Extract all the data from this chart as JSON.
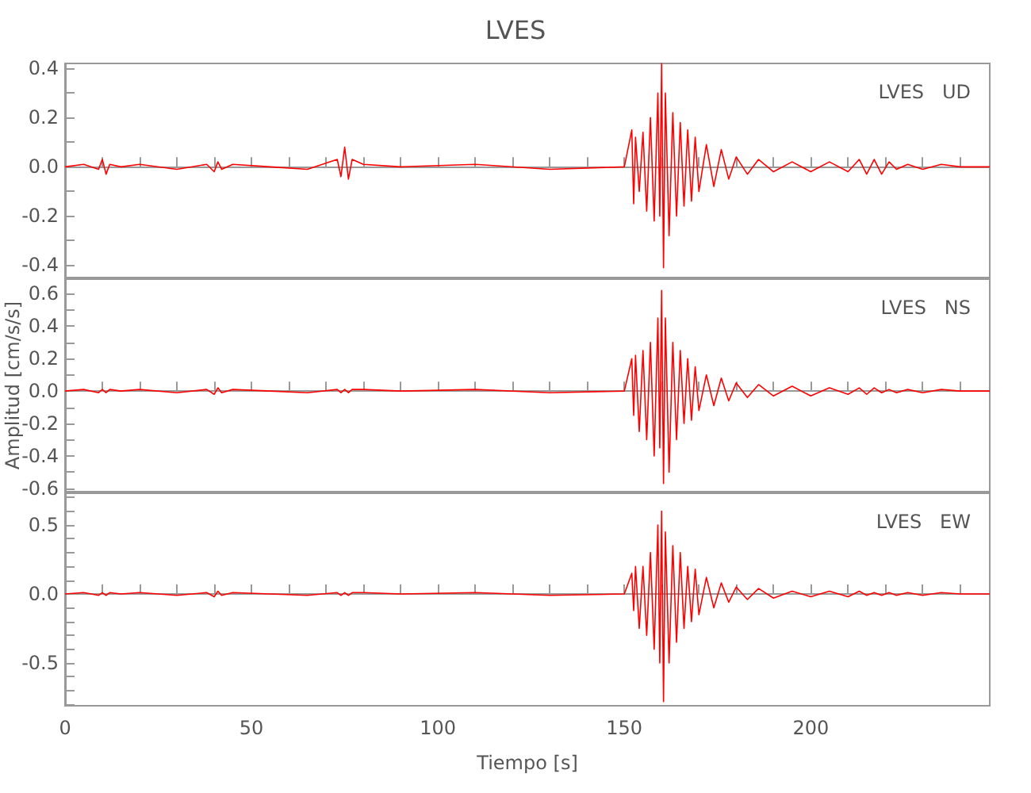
{
  "chart_data": [
    {
      "type": "line",
      "title": "LVES",
      "annotations": [
        "LVES   UD"
      ],
      "tick_labels": "y",
      "xlim": [
        0,
        248
      ],
      "xticks": [
        {
          "value": 0,
          "label": null
        },
        {
          "value": 10,
          "label": null
        },
        {
          "value": 20,
          "label": null
        },
        {
          "value": 30,
          "label": null
        },
        {
          "value": 40,
          "label": null
        },
        {
          "value": 50,
          "label": null
        },
        {
          "value": 60,
          "label": null
        },
        {
          "value": 70,
          "label": null
        },
        {
          "value": 80,
          "label": null
        },
        {
          "value": 90,
          "label": null
        },
        {
          "value": 100,
          "label": null
        },
        {
          "value": 110,
          "label": null
        },
        {
          "value": 120,
          "label": null
        },
        {
          "value": 130,
          "label": null
        },
        {
          "value": 140,
          "label": null
        },
        {
          "value": 150,
          "label": null
        },
        {
          "value": 160,
          "label": null
        },
        {
          "value": 170,
          "label": null
        },
        {
          "value": 180,
          "label": null
        },
        {
          "value": 190,
          "label": null
        },
        {
          "value": 200,
          "label": null
        },
        {
          "value": 210,
          "label": null
        },
        {
          "value": 220,
          "label": null
        },
        {
          "value": 230,
          "label": null
        },
        {
          "value": 240,
          "label": null
        }
      ],
      "ylim": [
        -0.45,
        0.42
      ],
      "yticks": [
        {
          "value": -0.4,
          "label": "-0.4"
        },
        {
          "value": -0.3,
          "label": null
        },
        {
          "value": -0.2,
          "label": "-0.2"
        },
        {
          "value": -0.1,
          "label": null
        },
        {
          "value": 0,
          "label": "0.0"
        },
        {
          "value": 0.1,
          "label": null
        },
        {
          "value": 0.2,
          "label": "0.2"
        },
        {
          "value": 0.3,
          "label": null
        },
        {
          "value": 0.4,
          "label": "0.4"
        }
      ],
      "x": [
        0,
        5,
        9,
        10,
        11,
        12,
        15,
        20,
        30,
        38,
        40,
        41,
        42,
        45,
        55,
        65,
        73,
        74,
        75,
        76,
        77,
        80,
        90,
        110,
        130,
        150,
        152,
        152.5,
        153,
        154,
        155,
        156,
        157,
        158,
        159,
        159.5,
        160,
        160.5,
        161,
        162,
        163,
        164,
        165,
        166,
        167,
        168,
        169,
        170,
        172,
        174,
        176,
        178,
        180,
        183,
        186,
        190,
        195,
        200,
        205,
        210,
        213,
        215,
        217,
        219,
        221,
        223,
        226,
        230,
        235,
        240,
        248
      ],
      "series": [
        {
          "color": "#ff0000",
          "values": [
            0,
            0.01,
            -0.01,
            0.03,
            -0.03,
            0.01,
            0,
            0.01,
            -0.01,
            0.01,
            -0.02,
            0.02,
            -0.01,
            0.01,
            0,
            -0.01,
            0.03,
            -0.04,
            0.08,
            -0.05,
            0.03,
            0.01,
            0,
            0.01,
            -0.01,
            0,
            0.15,
            -0.15,
            0.12,
            -0.1,
            0.14,
            -0.18,
            0.2,
            -0.22,
            0.3,
            -0.2,
            0.42,
            -0.41,
            0.3,
            -0.28,
            0.22,
            -0.2,
            0.18,
            -0.16,
            0.15,
            -0.14,
            0.12,
            -0.1,
            0.09,
            -0.08,
            0.07,
            -0.05,
            0.04,
            -0.03,
            0.03,
            -0.02,
            0.02,
            -0.02,
            0.02,
            -0.02,
            0.03,
            -0.03,
            0.03,
            -0.03,
            0.02,
            -0.01,
            0.01,
            -0.01,
            0.01,
            0,
            0
          ]
        }
      ]
    },
    {
      "type": "line",
      "ylabel": "Amplitud [cm/s/s]",
      "annotations": [
        "LVES   NS"
      ],
      "tick_labels": "y",
      "xlim": [
        0,
        248
      ],
      "xticks": [
        {
          "value": 0,
          "label": null
        },
        {
          "value": 10,
          "label": null
        },
        {
          "value": 20,
          "label": null
        },
        {
          "value": 30,
          "label": null
        },
        {
          "value": 40,
          "label": null
        },
        {
          "value": 50,
          "label": null
        },
        {
          "value": 60,
          "label": null
        },
        {
          "value": 70,
          "label": null
        },
        {
          "value": 80,
          "label": null
        },
        {
          "value": 90,
          "label": null
        },
        {
          "value": 100,
          "label": null
        },
        {
          "value": 110,
          "label": null
        },
        {
          "value": 120,
          "label": null
        },
        {
          "value": 130,
          "label": null
        },
        {
          "value": 140,
          "label": null
        },
        {
          "value": 150,
          "label": null
        },
        {
          "value": 160,
          "label": null
        },
        {
          "value": 170,
          "label": null
        },
        {
          "value": 180,
          "label": null
        },
        {
          "value": 190,
          "label": null
        },
        {
          "value": 200,
          "label": null
        },
        {
          "value": 210,
          "label": null
        },
        {
          "value": 220,
          "label": null
        },
        {
          "value": 230,
          "label": null
        },
        {
          "value": 240,
          "label": null
        }
      ],
      "ylim": [
        -0.62,
        0.69
      ],
      "yticks": [
        {
          "value": -0.6,
          "label": "-0.6"
        },
        {
          "value": -0.5,
          "label": null
        },
        {
          "value": -0.4,
          "label": "-0.4"
        },
        {
          "value": -0.3,
          "label": null
        },
        {
          "value": -0.2,
          "label": "-0.2"
        },
        {
          "value": -0.1,
          "label": null
        },
        {
          "value": 0,
          "label": "0.0"
        },
        {
          "value": 0.1,
          "label": null
        },
        {
          "value": 0.2,
          "label": "0.2"
        },
        {
          "value": 0.3,
          "label": null
        },
        {
          "value": 0.4,
          "label": "0.4"
        },
        {
          "value": 0.5,
          "label": null
        },
        {
          "value": 0.6,
          "label": "0.6"
        }
      ],
      "x": [
        0,
        5,
        9,
        10,
        11,
        12,
        15,
        20,
        30,
        38,
        40,
        41,
        42,
        45,
        55,
        65,
        73,
        74,
        75,
        76,
        77,
        80,
        90,
        110,
        130,
        150,
        152,
        152.5,
        153,
        154,
        155,
        156,
        157,
        158,
        159,
        159.5,
        160,
        160.5,
        161,
        162,
        163,
        164,
        165,
        166,
        167,
        168,
        169,
        170,
        172,
        174,
        176,
        178,
        180,
        183,
        186,
        190,
        195,
        200,
        205,
        210,
        213,
        215,
        217,
        219,
        221,
        223,
        226,
        230,
        235,
        240,
        248
      ],
      "series": [
        {
          "color": "#ff0000",
          "values": [
            0,
            0.01,
            -0.01,
            0.01,
            -0.01,
            0.01,
            0,
            0.01,
            -0.01,
            0.01,
            -0.02,
            0.02,
            -0.01,
            0.01,
            0,
            -0.01,
            0.01,
            -0.01,
            0.01,
            -0.01,
            0.01,
            0.01,
            0,
            0.01,
            -0.01,
            0,
            0.2,
            -0.15,
            0.22,
            -0.25,
            0.25,
            -0.3,
            0.3,
            -0.4,
            0.45,
            -0.35,
            0.62,
            -0.57,
            0.45,
            -0.5,
            0.3,
            -0.3,
            0.25,
            -0.2,
            0.2,
            -0.18,
            0.15,
            -0.12,
            0.1,
            -0.09,
            0.08,
            -0.06,
            0.05,
            -0.04,
            0.04,
            -0.03,
            0.03,
            -0.03,
            0.02,
            -0.02,
            0.02,
            -0.02,
            0.02,
            -0.01,
            0.01,
            -0.01,
            0.01,
            -0.01,
            0.01,
            0,
            0
          ]
        }
      ]
    },
    {
      "type": "line",
      "xlabel": "Tiempo [s]",
      "annotations": [
        "LVES   EW"
      ],
      "xlim": [
        0,
        248
      ],
      "xticks": [
        {
          "value": 0,
          "label": "0"
        },
        {
          "value": 10,
          "label": null
        },
        {
          "value": 20,
          "label": null
        },
        {
          "value": 30,
          "label": null
        },
        {
          "value": 40,
          "label": null
        },
        {
          "value": 50,
          "label": "50"
        },
        {
          "value": 60,
          "label": null
        },
        {
          "value": 70,
          "label": null
        },
        {
          "value": 80,
          "label": null
        },
        {
          "value": 90,
          "label": null
        },
        {
          "value": 100,
          "label": "100"
        },
        {
          "value": 110,
          "label": null
        },
        {
          "value": 120,
          "label": null
        },
        {
          "value": 130,
          "label": null
        },
        {
          "value": 140,
          "label": null
        },
        {
          "value": 150,
          "label": "150"
        },
        {
          "value": 160,
          "label": null
        },
        {
          "value": 170,
          "label": null
        },
        {
          "value": 180,
          "label": null
        },
        {
          "value": 190,
          "label": null
        },
        {
          "value": 200,
          "label": "200"
        },
        {
          "value": 210,
          "label": null
        },
        {
          "value": 220,
          "label": null
        },
        {
          "value": 230,
          "label": null
        },
        {
          "value": 240,
          "label": null
        }
      ],
      "ylim": [
        -0.81,
        0.73
      ],
      "yticks": [
        {
          "value": -0.8,
          "label": null
        },
        {
          "value": -0.7,
          "label": null
        },
        {
          "value": -0.6,
          "label": null
        },
        {
          "value": -0.5,
          "label": "-0.5"
        },
        {
          "value": -0.4,
          "label": null
        },
        {
          "value": -0.3,
          "label": null
        },
        {
          "value": -0.2,
          "label": null
        },
        {
          "value": -0.1,
          "label": null
        },
        {
          "value": 0,
          "label": "0.0"
        },
        {
          "value": 0.1,
          "label": null
        },
        {
          "value": 0.2,
          "label": null
        },
        {
          "value": 0.3,
          "label": null
        },
        {
          "value": 0.4,
          "label": null
        },
        {
          "value": 0.5,
          "label": "0.5"
        },
        {
          "value": 0.6,
          "label": null
        },
        {
          "value": 0.7,
          "label": null
        }
      ],
      "x": [
        0,
        5,
        9,
        10,
        11,
        12,
        15,
        20,
        30,
        38,
        40,
        41,
        42,
        45,
        55,
        65,
        73,
        74,
        75,
        76,
        77,
        80,
        90,
        110,
        130,
        150,
        152,
        152.5,
        153,
        154,
        155,
        156,
        157,
        158,
        159,
        159.5,
        160,
        160.5,
        161,
        162,
        163,
        164,
        165,
        166,
        167,
        168,
        169,
        170,
        172,
        174,
        176,
        178,
        180,
        183,
        186,
        190,
        195,
        200,
        205,
        210,
        213,
        215,
        217,
        219,
        221,
        223,
        226,
        230,
        235,
        240,
        248
      ],
      "series": [
        {
          "color": "#ff0000",
          "values": [
            0,
            0.01,
            -0.01,
            0.01,
            -0.01,
            0.01,
            0,
            0.01,
            -0.01,
            0.01,
            -0.02,
            0.02,
            -0.01,
            0.01,
            0,
            -0.01,
            0.01,
            -0.01,
            0.01,
            -0.01,
            0.01,
            0.01,
            0,
            0.01,
            -0.01,
            0,
            0.15,
            -0.12,
            0.2,
            -0.25,
            0.2,
            -0.3,
            0.3,
            -0.4,
            0.5,
            -0.5,
            0.6,
            -0.78,
            0.45,
            -0.5,
            0.35,
            -0.35,
            0.3,
            -0.25,
            0.2,
            -0.2,
            0.18,
            -0.15,
            0.12,
            -0.1,
            0.08,
            -0.06,
            0.05,
            -0.04,
            0.04,
            -0.03,
            0.02,
            -0.02,
            0.02,
            -0.02,
            0.02,
            -0.01,
            0.01,
            -0.01,
            0.01,
            -0.01,
            0.01,
            -0.01,
            0.01,
            0,
            0
          ]
        }
      ]
    }
  ]
}
